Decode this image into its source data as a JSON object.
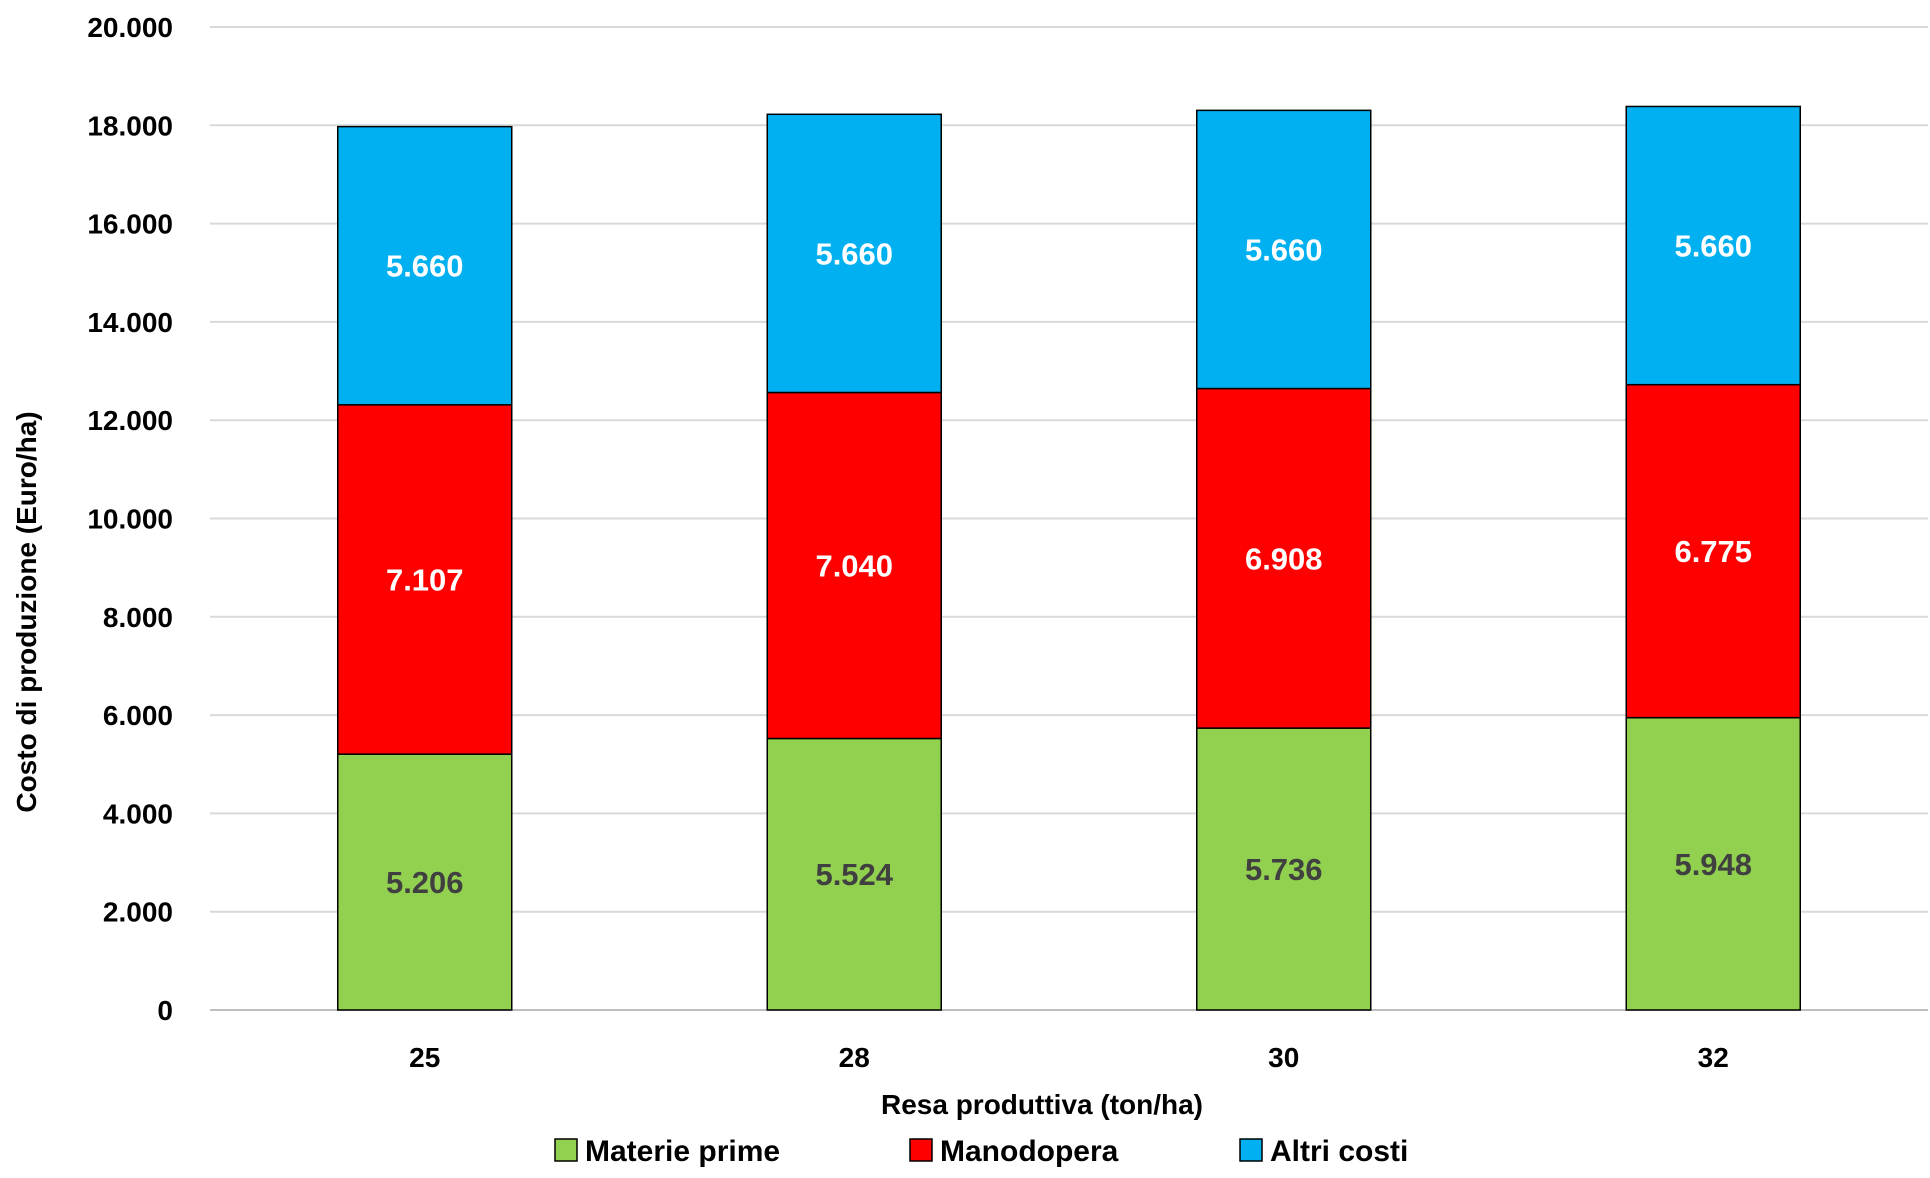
{
  "chart_data": {
    "type": "bar",
    "stacked": true,
    "categories": [
      "25",
      "28",
      "30",
      "32"
    ],
    "series": [
      {
        "name": "Materie prime",
        "color": "#92d050",
        "label_color": "#404040",
        "values": [
          5206,
          5524,
          5736,
          5948
        ]
      },
      {
        "name": "Manodopera",
        "color": "#ff0000",
        "label_color": "#ffffff",
        "values": [
          7107,
          7040,
          6908,
          6775
        ]
      },
      {
        "name": "Altri costi",
        "color": "#00b0f0",
        "label_color": "#ffffff",
        "values": [
          5660,
          5660,
          5660,
          5660
        ]
      }
    ],
    "value_labels": [
      [
        "5.206",
        "5.524",
        "5.736",
        "5.948"
      ],
      [
        "7.107",
        "7.040",
        "6.908",
        "6.775"
      ],
      [
        "5.660",
        "5.660",
        "5.660",
        "5.660"
      ]
    ],
    "xlabel": "Resa produttiva (ton/ha)",
    "ylabel": "Costo di produzione (Euro/ha)",
    "ylim": [
      0,
      20000
    ],
    "yticks": [
      0,
      2000,
      4000,
      6000,
      8000,
      10000,
      12000,
      14000,
      16000,
      18000,
      20000
    ],
    "ytick_labels": [
      "0",
      "2.000",
      "4.000",
      "6.000",
      "8.000",
      "10.000",
      "12.000",
      "14.000",
      "16.000",
      "18.000",
      "20.000"
    ],
    "grid": true,
    "gridline_color": "#d9d9d9",
    "legend_position": "bottom"
  }
}
